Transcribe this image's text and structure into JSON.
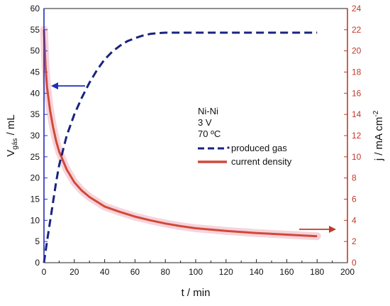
{
  "chart_data": {
    "type": "line",
    "title": "",
    "xlabel": "t / min",
    "ylabel_left": {
      "base": "V",
      "sub": "gás",
      "rest": " / mL"
    },
    "ylabel_right": {
      "base": "j / mA cm",
      "sup": "-2"
    },
    "xlim": [
      0,
      200
    ],
    "ylim_left": [
      0,
      60
    ],
    "ylim_right": [
      0,
      24
    ],
    "xticks": [
      "0",
      "20",
      "40",
      "60",
      "80",
      "100",
      "120",
      "140",
      "160",
      "180",
      "200"
    ],
    "yticks_left": [
      "0",
      "5",
      "10",
      "15",
      "20",
      "25",
      "30",
      "35",
      "40",
      "45",
      "50",
      "55",
      "60"
    ],
    "yticks_right": [
      "0",
      "2",
      "4",
      "6",
      "8",
      "10",
      "12",
      "14",
      "16",
      "18",
      "20",
      "22",
      "24"
    ],
    "annotations": [
      "Ni-Ni",
      "3 V",
      "70 ºC"
    ],
    "colors": {
      "left_axis": "#1f2dbd",
      "right_axis": "#c0392b",
      "gas_line": "#1a237e",
      "current_line": "#cf4a3a",
      "current_band": "#f4c4cf"
    },
    "series": [
      {
        "name": "produced gas",
        "axis": "left",
        "style": "dashed",
        "x": [
          0,
          2,
          5,
          8,
          10,
          15,
          20,
          25,
          30,
          35,
          40,
          45,
          50,
          55,
          60,
          65,
          70,
          75,
          80,
          100,
          120,
          140,
          160,
          180
        ],
        "y": [
          0,
          5,
          12,
          19,
          23,
          30,
          35,
          39,
          42.5,
          45.5,
          48,
          49.8,
          51.2,
          52.3,
          53.0,
          53.6,
          54.0,
          54.2,
          54.3,
          54.3,
          54.3,
          54.3,
          54.3,
          54.3
        ]
      },
      {
        "name": "current density",
        "axis": "right",
        "style": "solid",
        "x": [
          0,
          1,
          2,
          4,
          6,
          8,
          10,
          15,
          20,
          25,
          30,
          40,
          50,
          60,
          70,
          80,
          90,
          100,
          120,
          140,
          160,
          180
        ],
        "y": [
          22,
          18.6,
          16.6,
          14.4,
          12.8,
          11.5,
          10.5,
          8.8,
          7.6,
          6.8,
          6.2,
          5.3,
          4.8,
          4.35,
          4.0,
          3.7,
          3.45,
          3.25,
          3.0,
          2.8,
          2.65,
          2.5
        ]
      }
    ]
  }
}
